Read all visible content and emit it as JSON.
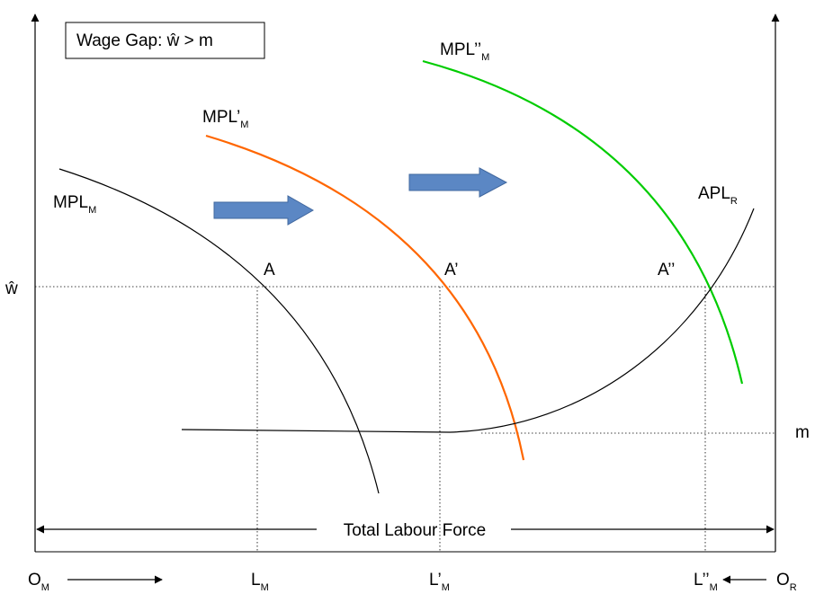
{
  "title_box": "Wage Gap: ŵ > m",
  "curves": {
    "mpl_m": {
      "label": "MPL",
      "sub": "M",
      "color": "#000000"
    },
    "mpl1_m": {
      "label": "MPL’",
      "sub": "M",
      "color": "#ff6600"
    },
    "mpl2_m": {
      "label": "MPL’’",
      "sub": "M",
      "color": "#00cc00"
    },
    "apl_r": {
      "label": "APL",
      "sub": "R",
      "color": "#000000"
    }
  },
  "points": {
    "a": "A",
    "a1": "A’",
    "a2": "A’’"
  },
  "levels": {
    "w_hat": "ŵ",
    "m": "m"
  },
  "axis": {
    "o_m": {
      "label": "O",
      "sub": "M"
    },
    "l_m": {
      "label": "L",
      "sub": "M"
    },
    "l1_m": {
      "label": "L’",
      "sub": "M"
    },
    "l2_m": {
      "label": "L’’",
      "sub": "M"
    },
    "o_r": {
      "label": "O",
      "sub": "R"
    }
  },
  "total_labour_force": "Total Labour Force",
  "arrow_color": "#5b87c4"
}
